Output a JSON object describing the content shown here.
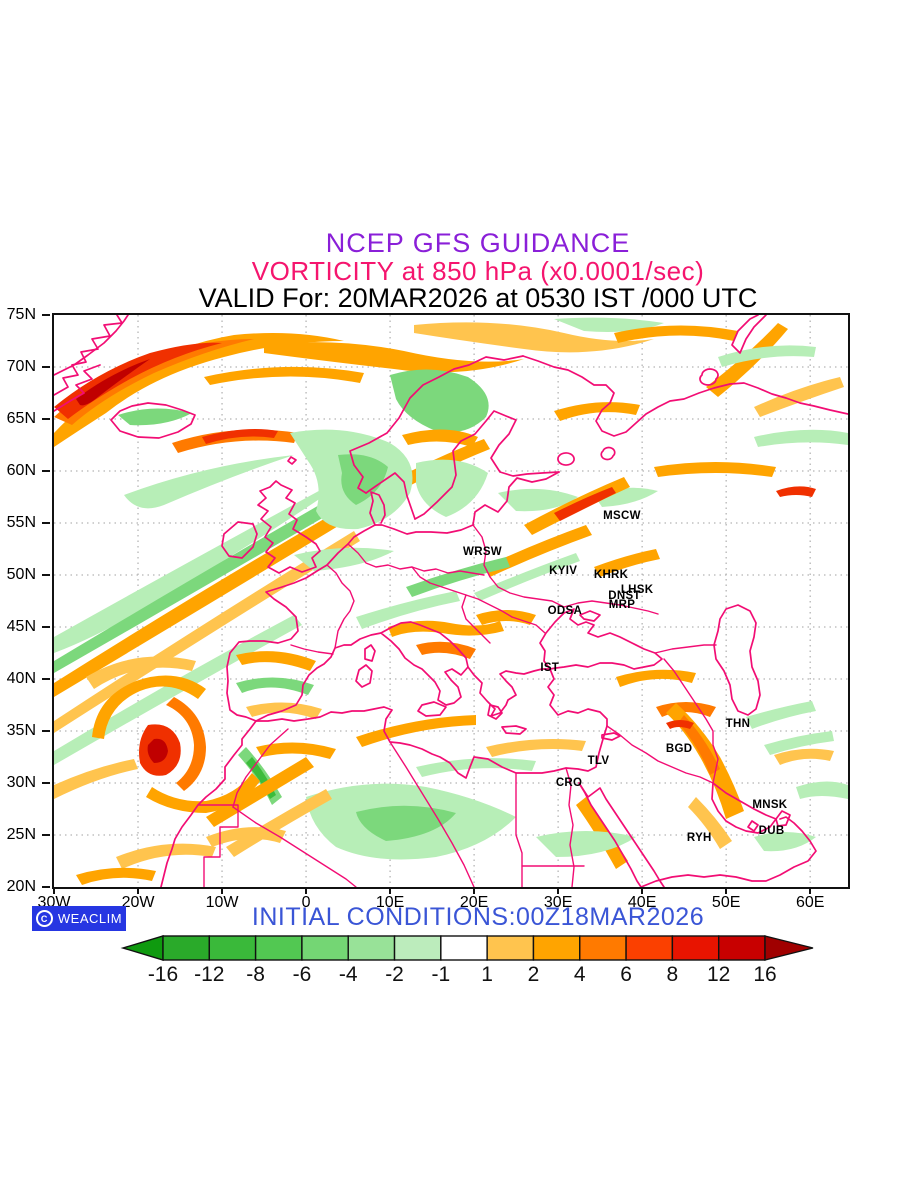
{
  "header": {
    "line1": "NCEP GFS GUIDANCE",
    "line2": "VORTICITY at 850 hPa (x0.0001/sec)",
    "line3": "VALID For: 20MAR2026 at 0530 IST /000 UTC",
    "line1_color": "#8a1fd8",
    "line2_color": "#f5156e"
  },
  "footer": {
    "logo_text": "WEACLIM",
    "logo_symbol": "C",
    "logo_bg": "#2636e2",
    "initial_conditions": "INITIAL CONDITIONS:00Z18MAR2026",
    "initial_color": "#3a55d6"
  },
  "map": {
    "coast_color": "#f20d74",
    "grid_color": "#b5b5b5",
    "lon_range": [
      -30,
      64.5
    ],
    "lat_range": [
      20,
      75
    ],
    "grid_lat_step": 5,
    "grid_lon_step": 10,
    "lat_ticks": [
      {
        "label": "75N",
        "deg": 75
      },
      {
        "label": "70N",
        "deg": 70
      },
      {
        "label": "65N",
        "deg": 65
      },
      {
        "label": "60N",
        "deg": 60
      },
      {
        "label": "55N",
        "deg": 55
      },
      {
        "label": "50N",
        "deg": 50
      },
      {
        "label": "45N",
        "deg": 45
      },
      {
        "label": "40N",
        "deg": 40
      },
      {
        "label": "35N",
        "deg": 35
      },
      {
        "label": "30N",
        "deg": 30
      },
      {
        "label": "25N",
        "deg": 25
      },
      {
        "label": "20N",
        "deg": 20
      }
    ],
    "lon_ticks": [
      {
        "label": "30W",
        "deg": -30
      },
      {
        "label": "20W",
        "deg": -20
      },
      {
        "label": "10W",
        "deg": -10
      },
      {
        "label": "0",
        "deg": 0
      },
      {
        "label": "10E",
        "deg": 10
      },
      {
        "label": "20E",
        "deg": 20
      },
      {
        "label": "30E",
        "deg": 30
      },
      {
        "label": "40E",
        "deg": 40
      },
      {
        "label": "50E",
        "deg": 50
      },
      {
        "label": "60E",
        "deg": 60
      }
    ],
    "cities": [
      {
        "label": "MSCW",
        "lon": 37.6,
        "lat": 55.7
      },
      {
        "label": "WRSW",
        "lon": 21.0,
        "lat": 52.2
      },
      {
        "label": "KYIV",
        "lon": 30.6,
        "lat": 50.4
      },
      {
        "label": "KHRK",
        "lon": 36.3,
        "lat": 50.0
      },
      {
        "label": "LHSK",
        "lon": 39.4,
        "lat": 48.6
      },
      {
        "label": "DNST",
        "lon": 37.9,
        "lat": 48.0
      },
      {
        "label": "MRP",
        "lon": 37.6,
        "lat": 47.1
      },
      {
        "label": "ODSA",
        "lon": 30.8,
        "lat": 46.5
      },
      {
        "label": "IST",
        "lon": 29.0,
        "lat": 41.1
      },
      {
        "label": "THN",
        "lon": 51.4,
        "lat": 35.7
      },
      {
        "label": "BGD",
        "lon": 44.4,
        "lat": 33.3
      },
      {
        "label": "TLV",
        "lon": 34.8,
        "lat": 32.1
      },
      {
        "label": "CRO",
        "lon": 31.3,
        "lat": 30.0
      },
      {
        "label": "MNSK",
        "lon": 55.2,
        "lat": 27.9
      },
      {
        "label": "RYH",
        "lon": 46.8,
        "lat": 24.7
      },
      {
        "label": "DUB",
        "lon": 55.4,
        "lat": 25.4
      }
    ]
  },
  "colorbar": {
    "labels": [
      "-16",
      "-12",
      "-8",
      "-6",
      "-4",
      "-2",
      "-1",
      "1",
      "2",
      "4",
      "6",
      "8",
      "12",
      "16"
    ],
    "segment_colors": [
      "#2aaa2a",
      "#3ab93a",
      "#52c852",
      "#74d674",
      "#98e298",
      "#bcecbc",
      "#ffffff",
      "#ffc44e",
      "#ffa400",
      "#ff7a00",
      "#fb4000",
      "#e81400",
      "#c80000"
    ],
    "left_arrow_color": "#0f9a0f",
    "right_arrow_color": "#a00000"
  },
  "chart_data": {
    "type": "heatmap",
    "title": "NCEP GFS GUIDANCE — VORTICITY at 850 hPa (x0.0001/sec)",
    "valid": "20MAR2026 at 0530 IST /000 UTC",
    "initial_conditions": "00Z18MAR2026",
    "xlabel_ticks": [
      "30W",
      "20W",
      "10W",
      "0",
      "10E",
      "20E",
      "30E",
      "40E",
      "50E",
      "60E"
    ],
    "ylabel_ticks": [
      "75N",
      "70N",
      "65N",
      "60N",
      "55N",
      "50N",
      "45N",
      "40N",
      "35N",
      "30N",
      "25N",
      "20N"
    ],
    "contour_levels": [
      -16,
      -12,
      -8,
      -6,
      -4,
      -2,
      -1,
      1,
      2,
      4,
      6,
      8,
      12,
      16
    ],
    "legend_position": "bottom"
  }
}
